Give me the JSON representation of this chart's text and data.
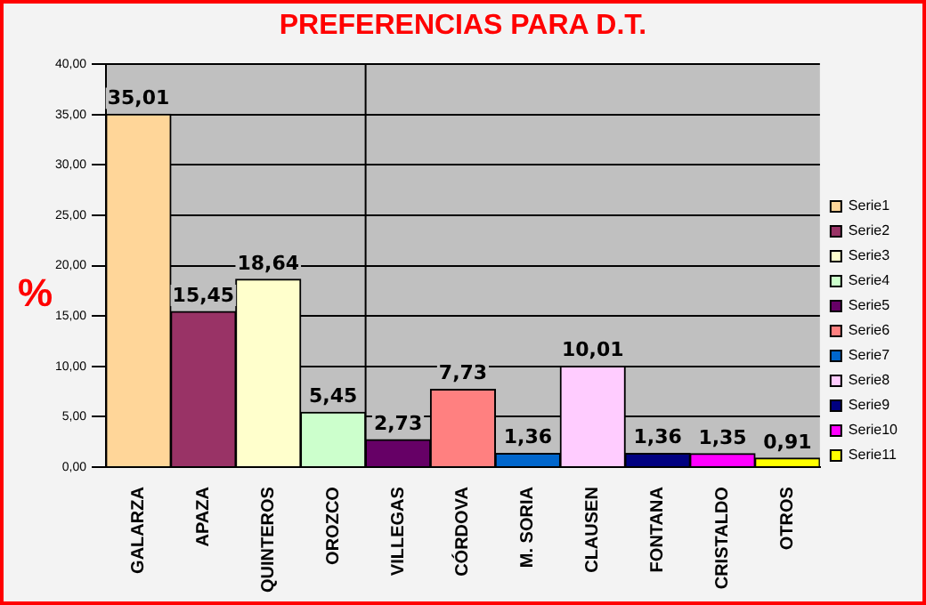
{
  "chart_data": {
    "type": "bar",
    "title": "PREFERENCIAS PARA D.T.",
    "ylabel": "%",
    "categories": [
      "GALARZA",
      "APAZA",
      "QUINTEROS",
      "OROZCO",
      "VILLEGAS",
      "CÓRDOVA",
      "M. SORIA",
      "CLAUSEN",
      "FONTANA",
      "CRISTALDO",
      "OTROS"
    ],
    "series": [
      {
        "name": "Serie1",
        "color": "#ffd699",
        "values": [
          35.01,
          null,
          null,
          null,
          null,
          null,
          null,
          null,
          null,
          null,
          null
        ],
        "value_labels": [
          "35,01",
          null,
          null,
          null,
          null,
          null,
          null,
          null,
          null,
          null,
          null
        ]
      },
      {
        "name": "Serie2",
        "color": "#993366",
        "values": [
          null,
          15.45,
          null,
          null,
          null,
          null,
          null,
          null,
          null,
          null,
          null
        ],
        "value_labels": [
          null,
          "15,45",
          null,
          null,
          null,
          null,
          null,
          null,
          null,
          null,
          null
        ]
      },
      {
        "name": "Serie3",
        "color": "#ffffcc",
        "values": [
          null,
          null,
          18.64,
          null,
          null,
          null,
          null,
          null,
          null,
          null,
          null
        ],
        "value_labels": [
          null,
          null,
          "18,64",
          null,
          null,
          null,
          null,
          null,
          null,
          null,
          null
        ]
      },
      {
        "name": "Serie4",
        "color": "#ccffcc",
        "values": [
          null,
          null,
          null,
          5.45,
          null,
          null,
          null,
          null,
          null,
          null,
          null
        ],
        "value_labels": [
          null,
          null,
          null,
          "5,45",
          null,
          null,
          null,
          null,
          null,
          null,
          null
        ]
      },
      {
        "name": "Serie5",
        "color": "#660066",
        "values": [
          null,
          null,
          null,
          null,
          2.73,
          null,
          null,
          null,
          null,
          null,
          null
        ],
        "value_labels": [
          null,
          null,
          null,
          null,
          "2,73",
          null,
          null,
          null,
          null,
          null,
          null
        ]
      },
      {
        "name": "Serie6",
        "color": "#ff8080",
        "values": [
          null,
          null,
          null,
          null,
          null,
          7.73,
          null,
          null,
          null,
          null,
          null
        ],
        "value_labels": [
          null,
          null,
          null,
          null,
          null,
          "7,73",
          null,
          null,
          null,
          null,
          null
        ]
      },
      {
        "name": "Serie7",
        "color": "#0066cc",
        "values": [
          null,
          null,
          null,
          null,
          null,
          null,
          1.36,
          null,
          null,
          null,
          null
        ],
        "value_labels": [
          null,
          null,
          null,
          null,
          null,
          null,
          "1,36",
          null,
          null,
          null,
          null
        ]
      },
      {
        "name": "Serie8",
        "color": "#ffccff",
        "values": [
          null,
          null,
          null,
          null,
          null,
          null,
          null,
          10.01,
          null,
          null,
          null
        ],
        "value_labels": [
          null,
          null,
          null,
          null,
          null,
          null,
          null,
          "10,01",
          null,
          null,
          null
        ]
      },
      {
        "name": "Serie9",
        "color": "#000080",
        "values": [
          null,
          null,
          null,
          null,
          null,
          null,
          null,
          null,
          1.36,
          null,
          null
        ],
        "value_labels": [
          null,
          null,
          null,
          null,
          null,
          null,
          null,
          null,
          "1,36",
          null,
          null
        ]
      },
      {
        "name": "Serie10",
        "color": "#ff00ff",
        "values": [
          null,
          null,
          null,
          null,
          null,
          null,
          null,
          null,
          null,
          1.35,
          null
        ],
        "value_labels": [
          null,
          null,
          null,
          null,
          null,
          null,
          null,
          null,
          null,
          "1,35",
          null
        ]
      },
      {
        "name": "Serie11",
        "color": "#ffff00",
        "values": [
          null,
          null,
          null,
          null,
          null,
          null,
          null,
          null,
          null,
          null,
          0.91
        ],
        "value_labels": [
          null,
          null,
          null,
          null,
          null,
          null,
          null,
          null,
          null,
          null,
          "0,91"
        ]
      }
    ],
    "ylim": [
      0,
      40
    ],
    "yticks": [
      {
        "value": 0,
        "label": "0,00"
      },
      {
        "value": 5,
        "label": "5,00"
      },
      {
        "value": 10,
        "label": "10,00"
      },
      {
        "value": 15,
        "label": "15,00"
      },
      {
        "value": 20,
        "label": "20,00"
      },
      {
        "value": 25,
        "label": "25,00"
      },
      {
        "value": 30,
        "label": "30,00"
      },
      {
        "value": 35,
        "label": "35,00"
      },
      {
        "value": 40,
        "label": "40,00"
      }
    ],
    "grid": "y",
    "legend": "right"
  }
}
